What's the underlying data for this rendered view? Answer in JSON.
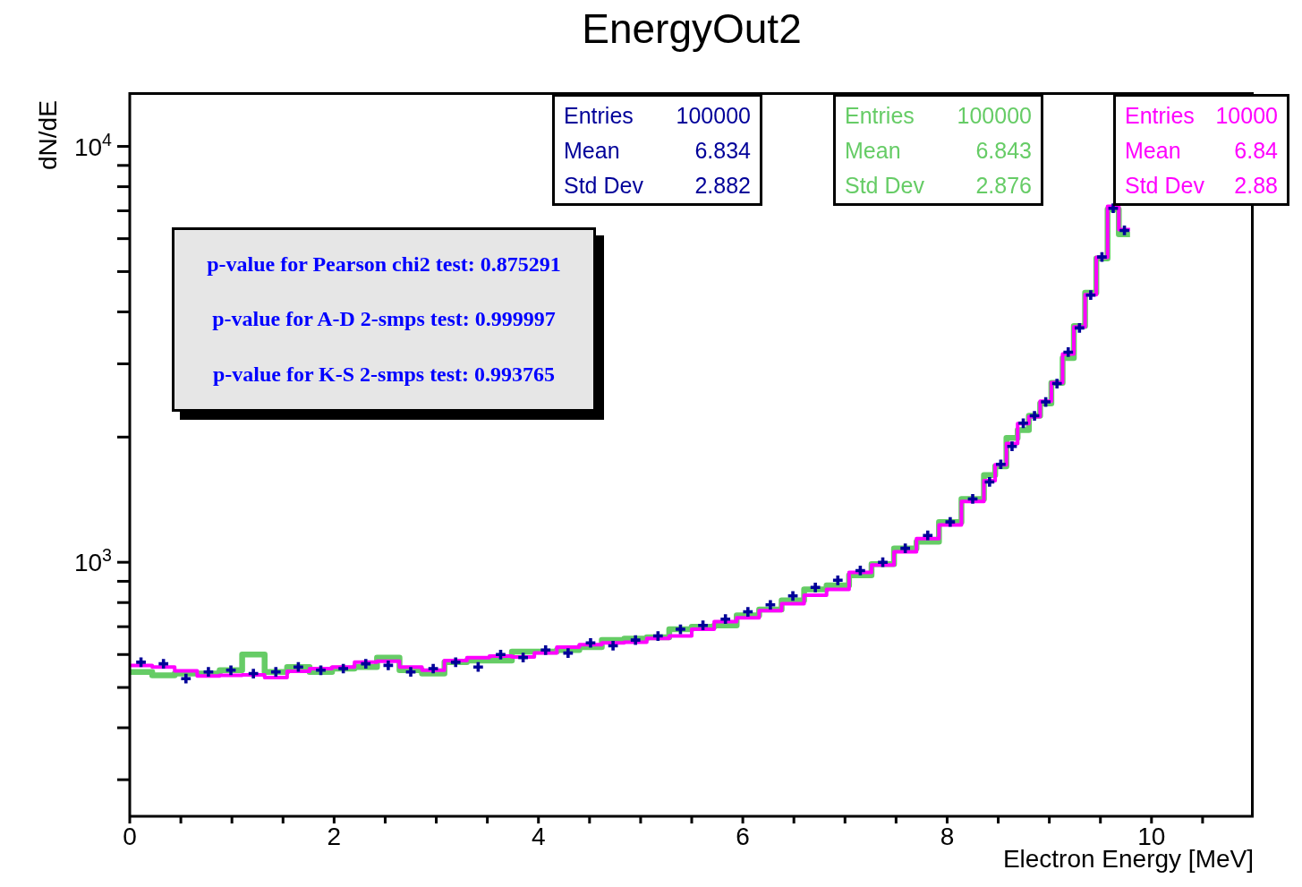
{
  "chart_data": {
    "type": "step",
    "title": "EnergyOut2",
    "xlabel": "Electron Energy [MeV]",
    "ylabel": "dN/dE",
    "log": "y",
    "grid": false,
    "legend": false,
    "xlim": [
      0,
      11
    ],
    "xticks": [
      0,
      {
        "value": 0.5,
        "label": null
      },
      {
        "value": 1,
        "label": null
      },
      {
        "value": 1.5,
        "label": null
      },
      2,
      {
        "value": 2.5,
        "label": null
      },
      {
        "value": 3,
        "label": null
      },
      {
        "value": 3.5,
        "label": null
      },
      4,
      {
        "value": 4.5,
        "label": null
      },
      {
        "value": 5,
        "label": null
      },
      {
        "value": 5.5,
        "label": null
      },
      6,
      {
        "value": 6.5,
        "label": null
      },
      {
        "value": 7,
        "label": null
      },
      {
        "value": 7.5,
        "label": null
      },
      8,
      {
        "value": 8.5,
        "label": null
      },
      {
        "value": 9,
        "label": null
      },
      {
        "value": 9.5,
        "label": null
      },
      10,
      {
        "value": 10.5,
        "label": null
      }
    ],
    "ylim": [
      245,
      13500
    ],
    "yticks": [
      {
        "value": 300,
        "label": null
      },
      {
        "value": 400,
        "label": null
      },
      {
        "value": 500,
        "label": null
      },
      {
        "value": 600,
        "label": null
      },
      {
        "value": 700,
        "label": null
      },
      {
        "value": 800,
        "label": null
      },
      {
        "value": 900,
        "label": null
      },
      {
        "value": 1000,
        "label": "10$^{3}$"
      },
      {
        "value": 2000,
        "label": null
      },
      {
        "value": 3000,
        "label": null
      },
      {
        "value": 4000,
        "label": null
      },
      {
        "value": 5000,
        "label": null
      },
      {
        "value": 6000,
        "label": null
      },
      {
        "value": 7000,
        "label": null
      },
      {
        "value": 8000,
        "label": null
      },
      {
        "value": 9000,
        "label": null
      },
      {
        "value": 10000,
        "label": "10$^{4}$"
      }
    ],
    "series": [
      {
        "type": "scatter",
        "marker": "cross",
        "color": "#000099",
        "x": [
          0.11,
          0.33,
          0.55,
          0.77,
          0.99,
          1.21,
          1.43,
          1.65,
          1.87,
          2.09,
          2.31,
          2.53,
          2.75,
          2.97,
          3.19,
          3.41,
          3.63,
          3.85,
          4.07,
          4.29,
          4.51,
          4.73,
          4.95,
          5.17,
          5.39,
          5.61,
          5.83,
          6.05,
          6.27,
          6.49,
          6.71,
          6.93,
          7.15,
          7.37,
          7.59,
          7.81,
          8.03,
          8.25,
          8.415,
          8.525,
          8.635,
          8.745,
          8.855,
          8.965,
          9.075,
          9.185,
          9.295,
          9.405,
          9.515,
          9.625,
          9.735
        ],
        "values": [
          575,
          570,
          525,
          545,
          550,
          540,
          545,
          560,
          550,
          555,
          570,
          565,
          545,
          555,
          575,
          560,
          600,
          590,
          615,
          605,
          640,
          630,
          650,
          665,
          690,
          705,
          730,
          760,
          790,
          830,
          870,
          905,
          955,
          1000,
          1080,
          1160,
          1250,
          1420,
          1560,
          1720,
          1900,
          2160,
          2250,
          2430,
          2690,
          3200,
          3660,
          4390,
          5420,
          7100,
          6280
        ]
      },
      {
        "marker": "none",
        "color": "#66cc66",
        "x": [
          0,
          0.22,
          0.44,
          0.66,
          0.88,
          1.1,
          1.32,
          1.54,
          1.76,
          1.98,
          2.2,
          2.42,
          2.64,
          2.86,
          3.08,
          3.3,
          3.52,
          3.74,
          3.96,
          4.18,
          4.4,
          4.62,
          4.84,
          5.06,
          5.28,
          5.5,
          5.72,
          5.94,
          6.16,
          6.38,
          6.6,
          6.82,
          7.04,
          7.26,
          7.48,
          7.7,
          7.92,
          8.14,
          8.36,
          8.47,
          8.58,
          8.69,
          8.8,
          8.91,
          9.02,
          9.13,
          9.24,
          9.35,
          9.46,
          9.57,
          9.68,
          9.79
        ],
        "values": [
          545,
          535,
          540,
          540,
          550,
          600,
          545,
          560,
          545,
          555,
          560,
          590,
          550,
          540,
          575,
          580,
          580,
          610,
          610,
          615,
          625,
          650,
          655,
          660,
          690,
          700,
          705,
          745,
          770,
          810,
          860,
          880,
          930,
          990,
          1080,
          1120,
          1250,
          1420,
          1620,
          1700,
          1990,
          2080,
          2250,
          2410,
          2700,
          3100,
          3700,
          4450,
          5380,
          7050,
          6150,
          6150
        ]
      },
      {
        "marker": "none",
        "color": "#ff00ff",
        "x": [
          0,
          0.22,
          0.44,
          0.66,
          0.88,
          1.1,
          1.32,
          1.54,
          1.76,
          1.98,
          2.2,
          2.42,
          2.64,
          2.86,
          3.08,
          3.3,
          3.52,
          3.74,
          3.96,
          4.18,
          4.4,
          4.62,
          4.84,
          5.06,
          5.28,
          5.5,
          5.72,
          5.94,
          6.16,
          6.38,
          6.6,
          6.82,
          7.04,
          7.26,
          7.48,
          7.7,
          7.92,
          8.14,
          8.36,
          8.47,
          8.58,
          8.69,
          8.8,
          8.91,
          9.02,
          9.13,
          9.24,
          9.35,
          9.46,
          9.57,
          9.68,
          9.79
        ],
        "values": [
          565,
          560,
          548,
          533,
          535,
          536,
          528,
          547,
          555,
          560,
          575,
          578,
          560,
          550,
          580,
          590,
          595,
          592,
          605,
          625,
          634,
          640,
          642,
          656,
          665,
          690,
          720,
          735,
          765,
          795,
          833,
          860,
          945,
          985,
          1060,
          1140,
          1230,
          1400,
          1571,
          1715,
          1930,
          2155,
          2240,
          2440,
          2705,
          3170,
          3680,
          4400,
          5410,
          7180,
          6310,
          6310
        ]
      }
    ],
    "annotations": [
      "Entries 100000",
      "Mean 6.834",
      "Std Dev 2.882",
      "Entries 100000",
      "Mean 6.843",
      "Std Dev 2.876",
      "Entries 10000",
      "Mean 6.84",
      "Std Dev 2.88",
      "p-value for Pearson chi2 test: 0.875291",
      "p-value for A-D 2-smps test: 0.999997",
      "p-value for K-S 2-smps test: 0.993765"
    ]
  }
}
